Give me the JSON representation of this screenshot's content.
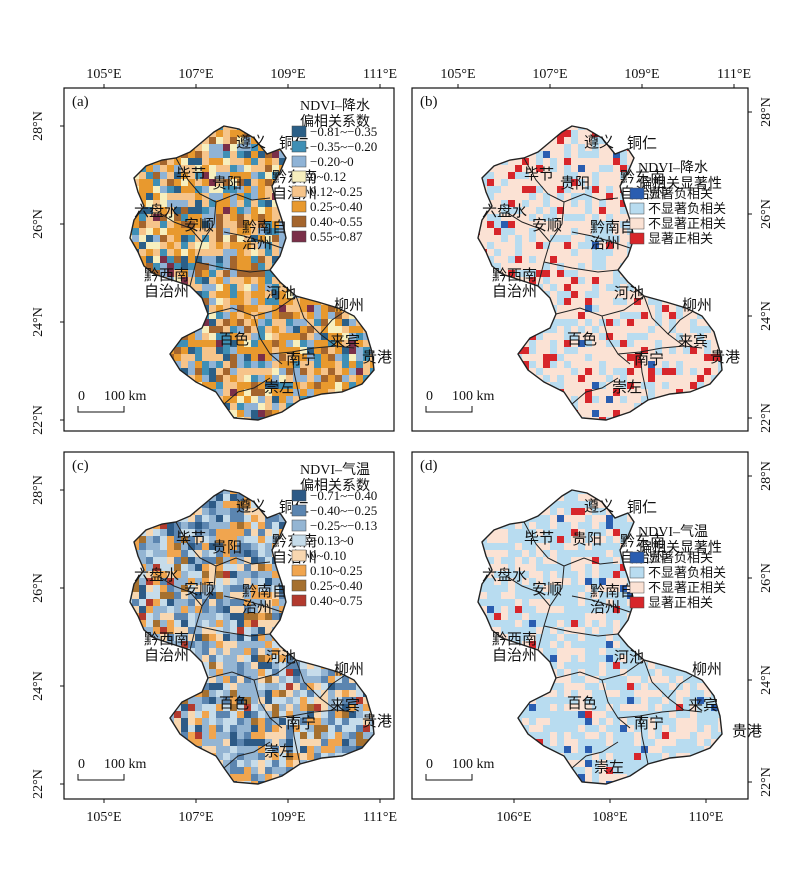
{
  "panels": [
    {
      "id": "a",
      "label": "(a)",
      "legend": {
        "title_lines": [
          "NDVI–降水",
          "偏相关系数"
        ],
        "items": [
          {
            "label": "−0.81~−0.35",
            "color": "#2b5f87"
          },
          {
            "label": "−0.35~−0.20",
            "color": "#3f8fb5"
          },
          {
            "label": "−0.20~0",
            "color": "#8fb3d6"
          },
          {
            "label": "0~0.12",
            "color": "#f7efbe"
          },
          {
            "label": "0.12~0.25",
            "color": "#f6c48a"
          },
          {
            "label": "0.25~0.40",
            "color": "#e8992e"
          },
          {
            "label": "0.40~0.55",
            "color": "#a4652d"
          },
          {
            "label": "0.55~0.87",
            "color": "#7a2f48"
          }
        ]
      },
      "x_ticks": [
        "105°E",
        "107°E",
        "109°E",
        "111°E"
      ],
      "y_ticks_left": [
        "28°N",
        "26°N",
        "24°N",
        "22°N"
      ],
      "y_ticks_right": [],
      "x_ticks_bottom": [],
      "scale": {
        "zero": "0",
        "dist": "100 km"
      }
    },
    {
      "id": "b",
      "label": "(b)",
      "legend": {
        "title_lines": [
          "NDVI–降水",
          "偏相关显著性"
        ],
        "items": [
          {
            "label": "显著负相关",
            "color": "#2a5db0"
          },
          {
            "label": "不显著负相关",
            "color": "#b8dcf0"
          },
          {
            "label": "不显著正相关",
            "color": "#fbe2d4"
          },
          {
            "label": "显著正相关",
            "color": "#d7262b"
          }
        ]
      },
      "x_ticks": [
        "105°E",
        "107°E",
        "109°E",
        "111°E"
      ],
      "y_ticks_left": [],
      "y_ticks_right": [
        "28°N",
        "26°N",
        "24°N",
        "22°N"
      ],
      "x_ticks_bottom": [],
      "scale": {
        "zero": "0",
        "dist": "100 km"
      }
    },
    {
      "id": "c",
      "label": "(c)",
      "legend": {
        "title_lines": [
          "NDVI–气温",
          "偏相关系数"
        ],
        "items": [
          {
            "label": "−0.71~−0.40",
            "color": "#2d5a86"
          },
          {
            "label": "−0.40~−0.25",
            "color": "#5b85b0"
          },
          {
            "label": "−0.25~−0.13",
            "color": "#94b5d3"
          },
          {
            "label": "−0.13~0",
            "color": "#c6dcea"
          },
          {
            "label": "0~0.10",
            "color": "#f8d7b0"
          },
          {
            "label": "0.10~0.25",
            "color": "#f0a54f"
          },
          {
            "label": "0.25~0.40",
            "color": "#a5702f"
          },
          {
            "label": "0.40~0.75",
            "color": "#b23a2e"
          }
        ]
      },
      "x_ticks": [],
      "y_ticks_left": [
        "28°N",
        "26°N",
        "24°N",
        "22°N"
      ],
      "y_ticks_right": [],
      "x_ticks_bottom": [
        "105°E",
        "107°E",
        "109°E",
        "111°E"
      ],
      "scale": {
        "zero": "0",
        "dist": "100 km"
      }
    },
    {
      "id": "d",
      "label": "(d)",
      "legend": {
        "title_lines": [
          "NDVI–气温",
          "偏相关显著性"
        ],
        "items": [
          {
            "label": "显著负相关",
            "color": "#2a5db0"
          },
          {
            "label": "不显著负相关",
            "color": "#b8dcf0"
          },
          {
            "label": "不显著正相关",
            "color": "#fbe2d4"
          },
          {
            "label": "显著正相关",
            "color": "#d7262b"
          }
        ]
      },
      "x_ticks": [],
      "y_ticks_left": [],
      "y_ticks_right": [
        "28°N",
        "26°N",
        "24°N",
        "22°N"
      ],
      "x_ticks_bottom": [
        "106°E",
        "108°E",
        "110°E"
      ],
      "scale": {
        "zero": "0",
        "dist": "100 km"
      }
    }
  ],
  "place_labels": [
    {
      "name": "遵义"
    },
    {
      "name": "铜仁"
    },
    {
      "name": "毕节"
    },
    {
      "name": "贵阳"
    },
    {
      "name": "黔东南自治州"
    },
    {
      "name": "六盘水"
    },
    {
      "name": "安顺"
    },
    {
      "name": "黔南自治州"
    },
    {
      "name": "黔西南自治州"
    },
    {
      "name": "河池"
    },
    {
      "name": "柳州"
    },
    {
      "name": "百色"
    },
    {
      "name": "来宾"
    },
    {
      "name": "南宁"
    },
    {
      "name": "贵港"
    },
    {
      "name": "崇左"
    }
  ],
  "pixel_mix": {
    "a": [
      0.07,
      0.11,
      0.13,
      0.08,
      0.23,
      0.26,
      0.09,
      0.03
    ],
    "b": [
      0.01,
      0.28,
      0.6,
      0.11
    ],
    "c": [
      0.07,
      0.14,
      0.24,
      0.18,
      0.15,
      0.14,
      0.06,
      0.02
    ],
    "d": [
      0.03,
      0.6,
      0.35,
      0.02
    ]
  }
}
